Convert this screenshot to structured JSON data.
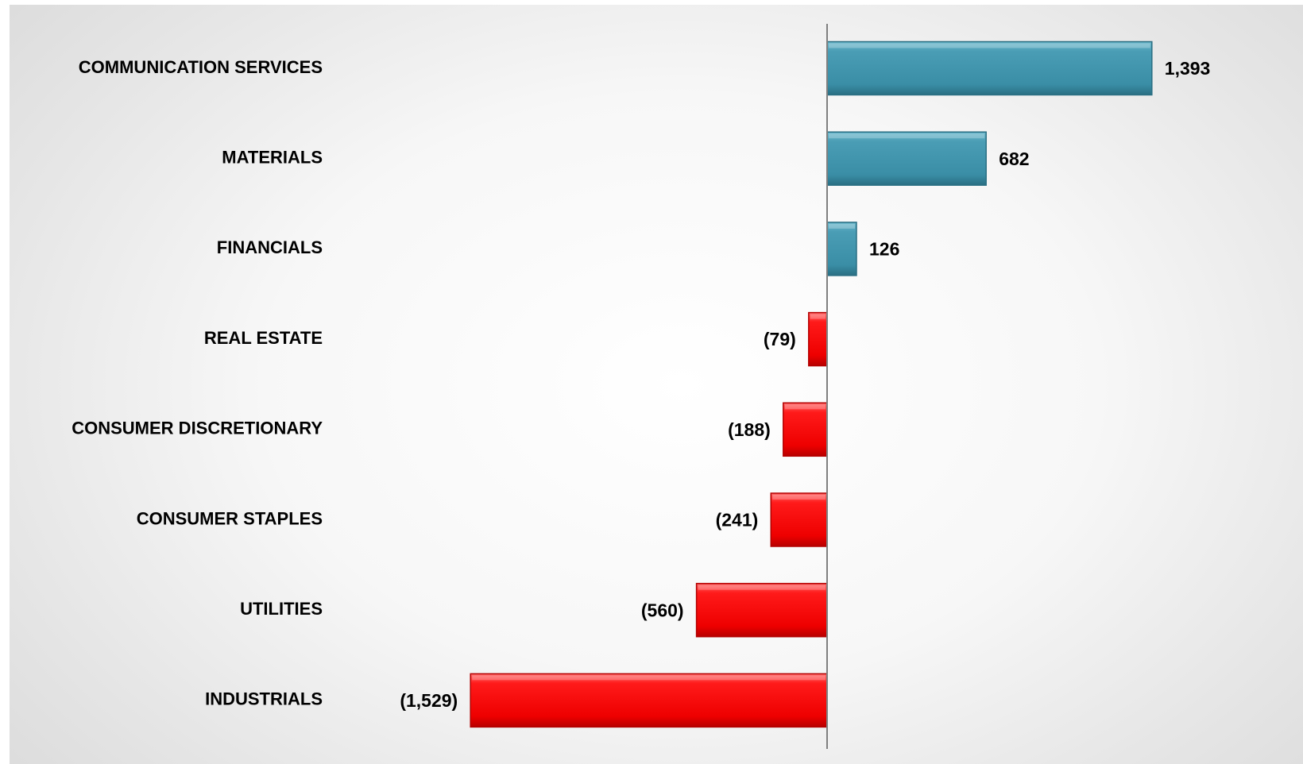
{
  "chart_data": {
    "type": "bar",
    "orientation": "horizontal",
    "categories": [
      "COMMUNICATION SERVICES",
      "MATERIALS",
      "FINANCIALS",
      "REAL ESTATE",
      "CONSUMER DISCRETIONARY",
      "CONSUMER STAPLES",
      "UTILITIES",
      "INDUSTRIALS"
    ],
    "values": [
      1393,
      682,
      126,
      -79,
      -188,
      -241,
      -560,
      -1529
    ],
    "value_labels": [
      "1,393",
      "682",
      "126",
      "(79)",
      "(188)",
      "(241)",
      "(560)",
      "(1,529)"
    ],
    "title": "",
    "xlabel": "",
    "ylabel": "",
    "xlim": [
      -1529,
      1393
    ],
    "grid": false,
    "legend": "none",
    "colors": {
      "positive": "#3a8ea6",
      "negative": "#ff0000"
    }
  }
}
